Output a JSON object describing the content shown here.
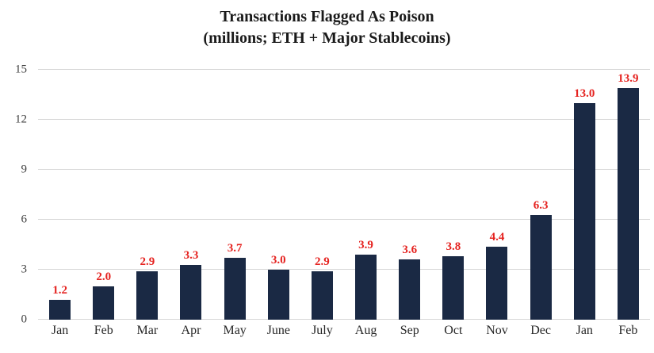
{
  "title_line1": "Transactions Flagged As Poison",
  "title_line2": "(millions; ETH + Major Stablecoins)",
  "chart_data": {
    "type": "bar",
    "title": "Transactions Flagged As Poison (millions; ETH + Major Stablecoins)",
    "categories": [
      "Jan",
      "Feb",
      "Mar",
      "Apr",
      "May",
      "June",
      "July",
      "Aug",
      "Sep",
      "Oct",
      "Nov",
      "Dec",
      "Jan",
      "Feb"
    ],
    "values": [
      1.2,
      2.0,
      2.9,
      3.3,
      3.7,
      3.0,
      2.9,
      3.9,
      3.6,
      3.8,
      4.4,
      6.3,
      13.0,
      13.9
    ],
    "value_labels": [
      "1.2",
      "2.0",
      "2.9",
      "3.3",
      "3.7",
      "3.0",
      "2.9",
      "3.9",
      "3.6",
      "3.8",
      "4.4",
      "6.3",
      "13.0",
      "13.9"
    ],
    "xlabel": "",
    "ylabel": "",
    "yticks": [
      0,
      3,
      6,
      9,
      12,
      15
    ],
    "ylim": [
      0,
      15
    ],
    "grid": "horizontal",
    "legend": "none",
    "bar_color": "#1a2944",
    "value_label_color": "#e52320",
    "gridline_color": "#d6d6d6",
    "tick_label_color": "#3f3f3f"
  }
}
